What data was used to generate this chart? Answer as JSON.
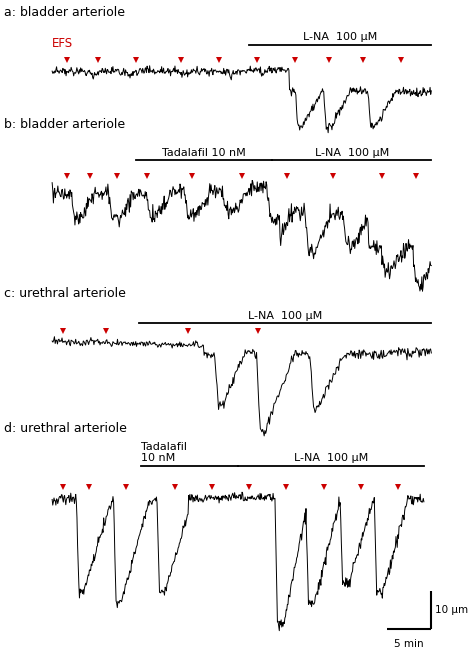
{
  "panel_a_label": "a: bladder arteriole",
  "panel_b_label": "b: bladder arteriole",
  "panel_c_label": "c: urethral arteriole",
  "panel_d_label": "d: urethral arteriole",
  "efs_label": "EFS",
  "tadalafil_label": "Tadalafil 10 nM",
  "tadalafil_d_label": "Tadalafil\n10 nM",
  "lna_label": "L-NA  100 μM",
  "scale_y_label": "10 μm",
  "scale_x_label": "5 min",
  "background": "#ffffff",
  "trace_color": "#000000",
  "arrow_color": "#cc0000",
  "efs_color": "#cc0000",
  "label_color": "#000000"
}
